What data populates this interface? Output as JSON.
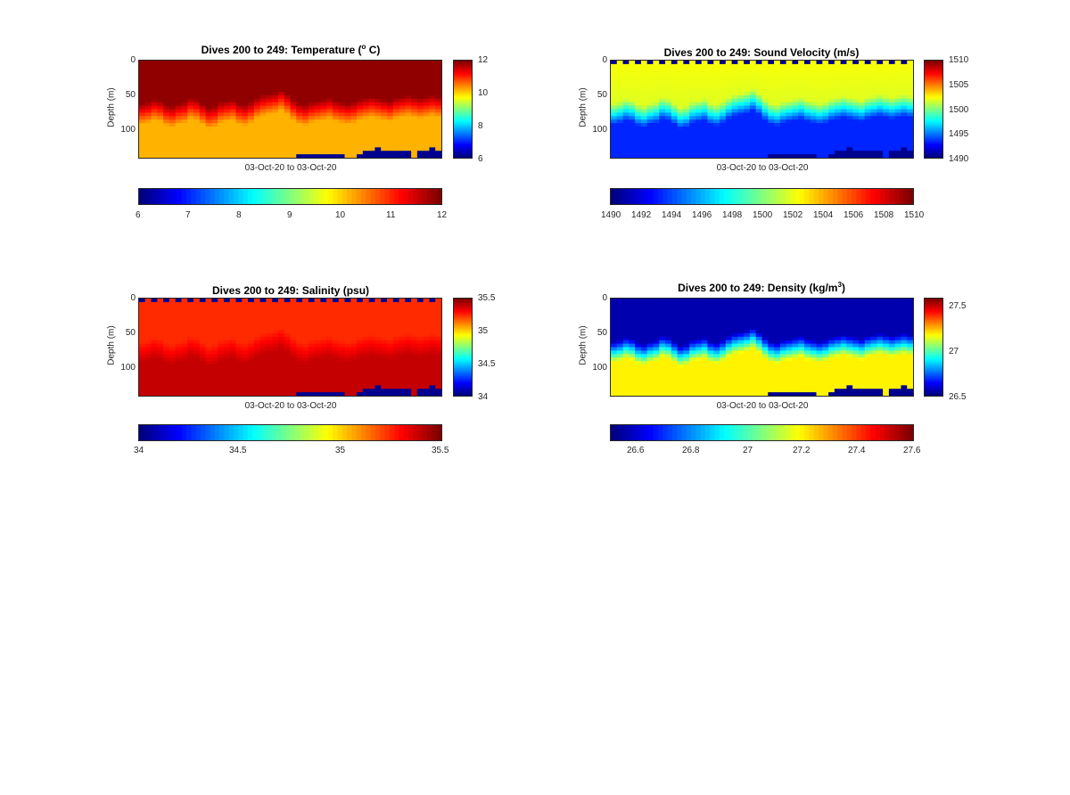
{
  "chart_data": [
    {
      "type": "heatmap",
      "title_prefix": "Dives 200 to 249: Temperature (",
      "title_sup": "o",
      "title_suffix": " C)",
      "xlabel": "03-Oct-20 to 03-Oct-20",
      "ylabel": "Depth (m)",
      "yticks": [
        "0",
        "50",
        "100"
      ],
      "ytick_values": [
        0,
        50,
        100
      ],
      "ylim": [
        0,
        140
      ],
      "side_colorbar_ticks": [
        "12",
        "10",
        "8",
        "6"
      ],
      "side_colorbar_values": [
        12,
        10,
        8,
        6
      ],
      "bottom_colorbar_ticks": [
        "6",
        "7",
        "8",
        "9",
        "10",
        "11",
        "12"
      ],
      "bottom_colorbar_values": [
        6,
        7,
        8,
        9,
        10,
        11,
        12
      ],
      "clim": [
        6,
        12
      ],
      "surface_value": 11.9,
      "mixed_value": 11.9,
      "deep_value": 10.2,
      "mixed_layer_depth": [
        72,
        70,
        66,
        68,
        74,
        76,
        72,
        70,
        64,
        66,
        72,
        78,
        76,
        70,
        68,
        66,
        72,
        74,
        70,
        64,
        60,
        58,
        56,
        52,
        58,
        66,
        72,
        74,
        70,
        68,
        66,
        64,
        68,
        70,
        72,
        70,
        66,
        64,
        62,
        64,
        66,
        68,
        64,
        62,
        60,
        62,
        64,
        62,
        60,
        62
      ],
      "bottom_depth": [
        140,
        140,
        140,
        140,
        140,
        140,
        140,
        140,
        140,
        140,
        140,
        140,
        140,
        140,
        140,
        140,
        140,
        140,
        140,
        140,
        140,
        140,
        140,
        140,
        140,
        138,
        136,
        135,
        134,
        133,
        133,
        135,
        136,
        137,
        138,
        139,
        135,
        130,
        128,
        126,
        128,
        129,
        130,
        131,
        132,
        140,
        129,
        128,
        127,
        128
      ],
      "surface_band": false,
      "domain_top_label": "0"
    },
    {
      "type": "heatmap",
      "title_prefix": "Dives 200 to 249: Sound Velocity (m/s)",
      "title_sup": "",
      "title_suffix": "",
      "xlabel": "03-Oct-20 to 03-Oct-20",
      "ylabel": "Depth (m)",
      "yticks": [
        "0",
        "50",
        "100"
      ],
      "ytick_values": [
        0,
        50,
        100
      ],
      "ylim": [
        0,
        140
      ],
      "side_colorbar_ticks": [
        "1510",
        "1505",
        "1500",
        "1495",
        "1490"
      ],
      "side_colorbar_values": [
        1510,
        1505,
        1500,
        1495,
        1490
      ],
      "bottom_colorbar_ticks": [
        "1490",
        "1492",
        "1494",
        "1496",
        "1498",
        "1500",
        "1502",
        "1504",
        "1506",
        "1508",
        "1510"
      ],
      "bottom_colorbar_values": [
        1490,
        1492,
        1494,
        1496,
        1498,
        1500,
        1502,
        1504,
        1506,
        1508,
        1510
      ],
      "clim": [
        1490,
        1510
      ],
      "surface_value": 1502.4,
      "mixed_value": 1501.8,
      "deep_value": 1493.2,
      "mixed_layer_depth": [
        72,
        70,
        66,
        68,
        74,
        76,
        72,
        70,
        64,
        66,
        72,
        78,
        76,
        70,
        68,
        66,
        72,
        74,
        70,
        64,
        60,
        58,
        56,
        52,
        58,
        66,
        72,
        74,
        70,
        68,
        66,
        64,
        68,
        70,
        72,
        70,
        66,
        64,
        62,
        64,
        66,
        68,
        64,
        62,
        60,
        62,
        64,
        62,
        60,
        62
      ],
      "bottom_depth": [
        140,
        140,
        140,
        140,
        140,
        140,
        140,
        140,
        140,
        140,
        140,
        140,
        140,
        140,
        140,
        140,
        140,
        140,
        140,
        140,
        140,
        140,
        140,
        140,
        140,
        138,
        136,
        135,
        134,
        133,
        133,
        135,
        136,
        137,
        138,
        139,
        135,
        130,
        128,
        126,
        128,
        129,
        130,
        131,
        132,
        140,
        129,
        128,
        127,
        128
      ],
      "surface_band": true
    },
    {
      "type": "heatmap",
      "title_prefix": "Dives 200 to 249: Salinity (psu)",
      "title_sup": "",
      "title_suffix": "",
      "xlabel": "03-Oct-20 to 03-Oct-20",
      "ylabel": "Depth (m)",
      "yticks": [
        "0",
        "50",
        "100"
      ],
      "ytick_values": [
        0,
        50,
        100
      ],
      "ylim": [
        0,
        140
      ],
      "side_colorbar_ticks": [
        "35.5",
        "35",
        "34.5",
        "34"
      ],
      "side_colorbar_values": [
        35.5,
        35,
        34.5,
        34
      ],
      "bottom_colorbar_ticks": [
        "34",
        "34.5",
        "35",
        "35.5"
      ],
      "bottom_colorbar_values": [
        34,
        34.5,
        35,
        35.5
      ],
      "clim": [
        34,
        35.5
      ],
      "surface_value": 35.25,
      "mixed_value": 35.25,
      "deep_value": 35.4,
      "mixed_layer_depth": [
        72,
        70,
        66,
        68,
        74,
        76,
        72,
        70,
        64,
        66,
        72,
        78,
        76,
        70,
        68,
        66,
        72,
        74,
        70,
        64,
        60,
        58,
        56,
        52,
        58,
        66,
        72,
        74,
        70,
        68,
        66,
        64,
        68,
        70,
        72,
        70,
        66,
        64,
        62,
        64,
        66,
        68,
        64,
        62,
        60,
        62,
        64,
        62,
        60,
        62
      ],
      "bottom_depth": [
        140,
        140,
        140,
        140,
        140,
        140,
        140,
        140,
        140,
        140,
        140,
        140,
        140,
        140,
        140,
        140,
        140,
        140,
        140,
        140,
        140,
        140,
        140,
        140,
        140,
        138,
        136,
        135,
        134,
        133,
        133,
        135,
        136,
        137,
        138,
        139,
        135,
        130,
        128,
        126,
        128,
        129,
        130,
        131,
        132,
        140,
        129,
        128,
        127,
        128
      ],
      "surface_band": true
    },
    {
      "type": "heatmap",
      "title_prefix": "Dives 200 to 249: Density (kg/m",
      "title_sup": "3",
      "title_suffix": ")",
      "xlabel": "03-Oct-20 to 03-Oct-20",
      "ylabel": "Depth (m)",
      "yticks": [
        "0",
        "50",
        "100"
      ],
      "ytick_values": [
        0,
        50,
        100
      ],
      "ylim": [
        0,
        140
      ],
      "side_colorbar_ticks": [
        "27.5",
        "27",
        "26.5"
      ],
      "side_colorbar_values": [
        27.5,
        27,
        26.5
      ],
      "bottom_colorbar_ticks": [
        "26.6",
        "26.8",
        "27",
        "27.2",
        "27.4",
        "27.6"
      ],
      "bottom_colorbar_values": [
        26.6,
        26.8,
        27,
        27.2,
        27.4,
        27.6
      ],
      "clim": [
        26.5,
        27.6
      ],
      "surface_value": 26.55,
      "mixed_value": 26.55,
      "deep_value": 27.2,
      "mixed_layer_depth": [
        72,
        70,
        66,
        68,
        74,
        76,
        72,
        70,
        64,
        66,
        72,
        78,
        76,
        70,
        68,
        66,
        72,
        74,
        70,
        64,
        60,
        58,
        56,
        52,
        58,
        66,
        72,
        74,
        70,
        68,
        66,
        64,
        68,
        70,
        72,
        70,
        66,
        64,
        62,
        64,
        66,
        68,
        64,
        62,
        60,
        62,
        64,
        62,
        60,
        62
      ],
      "bottom_depth": [
        140,
        140,
        140,
        140,
        140,
        140,
        140,
        140,
        140,
        140,
        140,
        140,
        140,
        140,
        140,
        140,
        140,
        140,
        140,
        140,
        140,
        140,
        140,
        140,
        140,
        138,
        136,
        135,
        134,
        133,
        133,
        135,
        136,
        137,
        138,
        139,
        135,
        130,
        128,
        126,
        128,
        129,
        130,
        131,
        132,
        140,
        129,
        128,
        127,
        128
      ],
      "surface_band": false
    }
  ],
  "colors": {
    "no_data": "#00008F",
    "axis": "#262626"
  }
}
